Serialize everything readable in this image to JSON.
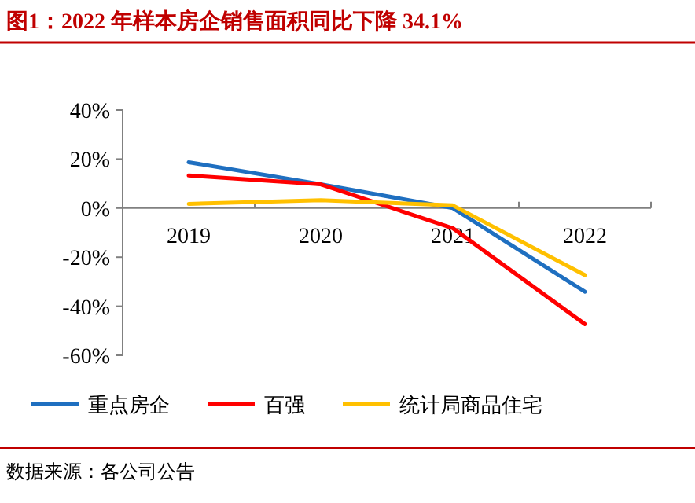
{
  "chart_data": {
    "type": "line",
    "title": "图1：2022 年样本房企销售面积同比下降 34.1%",
    "categories": [
      "2019",
      "2020",
      "2021",
      "2022"
    ],
    "series": [
      {
        "name": "重点房企",
        "color": "#1f6fc0",
        "values": [
          18.7,
          9.7,
          0,
          -34.1
        ]
      },
      {
        "name": "百强",
        "color": "#ff0000",
        "values": [
          13.3,
          9.7,
          -8.2,
          -47.3
        ]
      },
      {
        "name": "统计局商品住宅",
        "color": "#ffc000",
        "values": [
          1.7,
          3.2,
          1.1,
          -27.3
        ]
      }
    ],
    "ylim": [
      -60,
      40
    ],
    "yticks": [
      {
        "value": 40,
        "label": "40%"
      },
      {
        "value": 20,
        "label": "20%"
      },
      {
        "value": 0,
        "label": "0%"
      },
      {
        "value": -20,
        "label": "-20%"
      },
      {
        "value": -40,
        "label": "-40%"
      },
      {
        "value": -60,
        "label": "-60%"
      }
    ],
    "legend": "bottom",
    "annotations": [
      "数据来源：各公司公告"
    ]
  }
}
